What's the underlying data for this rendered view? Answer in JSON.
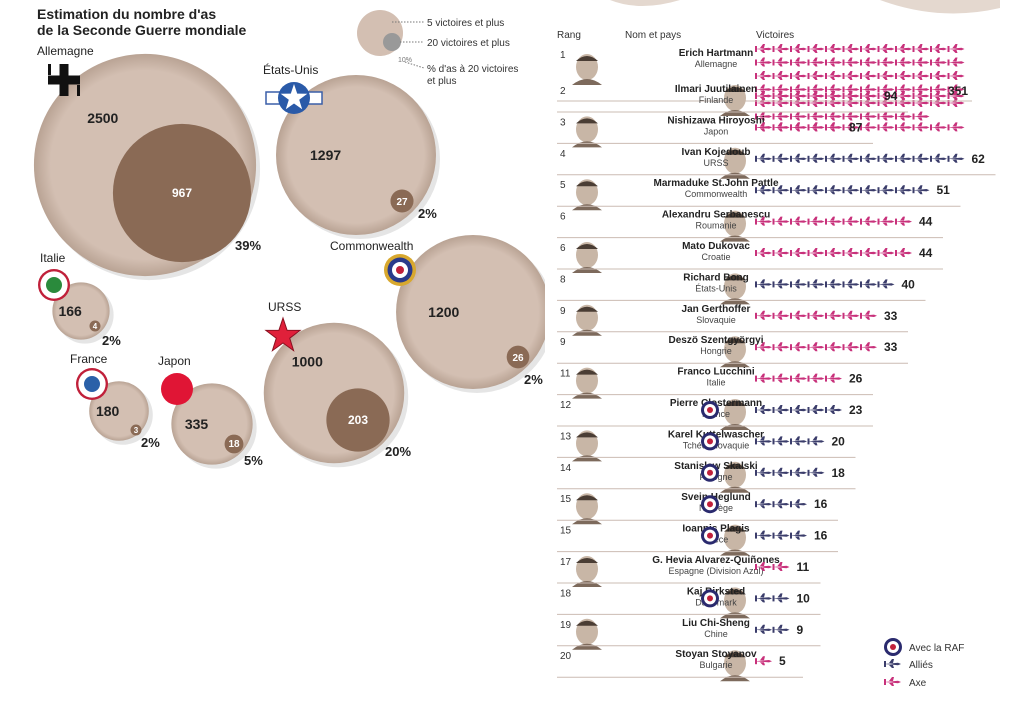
{
  "title_lines": [
    "Estimation du nombre d'as",
    "de la Seconde Guerre mondiale"
  ],
  "bubble_legend": {
    "items": [
      "5 victoires et plus",
      "20 victoires et plus",
      "% d'as à 20 victoires",
      "et plus"
    ],
    "sample_pct": "10%"
  },
  "table_headers": {
    "rank": "Rang",
    "name": "Nom et pays",
    "victories": "Victoires"
  },
  "legend": {
    "raf": "Avec la RAF",
    "allies": "Alliés",
    "axis": "Axe"
  },
  "colors": {
    "outer": "#d3bfb2",
    "inner": "#8a6a55",
    "axis": "#c8317b",
    "allies": "#3b3d6b",
    "raf": "#2a2a6e",
    "row_line": "#cbbcb3"
  },
  "chart_data": [
    {
      "type": "bubble",
      "series": [
        {
          "country": "Allemagne",
          "aces_5_plus": 2500,
          "aces_20_plus": 967,
          "pct_20_plus": "39%"
        },
        {
          "country": "États-Unis",
          "aces_5_plus": 1297,
          "aces_20_plus": 27,
          "pct_20_plus": "2%"
        },
        {
          "country": "Italie",
          "aces_5_plus": 166,
          "aces_20_plus": 4,
          "pct_20_plus": "2%"
        },
        {
          "country": "Commonwealth",
          "aces_5_plus": 1200,
          "aces_20_plus": 26,
          "pct_20_plus": "2%"
        },
        {
          "country": "France",
          "aces_5_plus": 180,
          "aces_20_plus": 3,
          "pct_20_plus": "2%"
        },
        {
          "country": "Japon",
          "aces_5_plus": 335,
          "aces_20_plus": 18,
          "pct_20_plus": "5%"
        },
        {
          "country": "URSS",
          "aces_5_plus": 1000,
          "aces_20_plus": 203,
          "pct_20_plus": "20%"
        }
      ]
    },
    {
      "type": "bar",
      "pilots": [
        {
          "rank": "1",
          "name": "Erich Hartmann",
          "country": "Allemagne",
          "victories": 351,
          "side": "axis",
          "raf": false
        },
        {
          "rank": "2",
          "name": "Ilmari Juutilainen",
          "country": "Finlande",
          "victories": 94,
          "side": "axis",
          "raf": false
        },
        {
          "rank": "3",
          "name": "Nishizawa Hiroyoshi",
          "country": "Japon",
          "victories": 87,
          "side": "axis",
          "raf": false
        },
        {
          "rank": "4",
          "name": "Ivan Kojedoub",
          "country": "URSS",
          "victories": 62,
          "side": "allies",
          "raf": false
        },
        {
          "rank": "5",
          "name": "Marmaduke St.John Pattle",
          "country": "Commonwealth",
          "victories": 51,
          "side": "allies",
          "raf": false
        },
        {
          "rank": "6",
          "name": "Alexandru Serbanescu",
          "country": "Roumanie",
          "victories": 44,
          "side": "axis",
          "raf": false
        },
        {
          "rank": "6",
          "name": "Mato Dukovac",
          "country": "Croatie",
          "victories": 44,
          "side": "axis",
          "raf": false
        },
        {
          "rank": "8",
          "name": "Richard Bong",
          "country": "États-Unis",
          "victories": 40,
          "side": "allies",
          "raf": false
        },
        {
          "rank": "9",
          "name": "Jan Gerthoffer",
          "country": "Slovaquie",
          "victories": 33,
          "side": "axis",
          "raf": false
        },
        {
          "rank": "9",
          "name": "Deszö Szentgyörgyi",
          "country": "Hongrie",
          "victories": 33,
          "side": "axis",
          "raf": false
        },
        {
          "rank": "11",
          "name": "Franco Lucchini",
          "country": "Italie",
          "victories": 26,
          "side": "axis",
          "raf": false
        },
        {
          "rank": "12",
          "name": "Pierre Clostermann",
          "country": "France",
          "victories": 23,
          "side": "allies",
          "raf": true
        },
        {
          "rank": "13",
          "name": "Karel Kuttelwascher",
          "country": "Tchécoslovaquie",
          "victories": 20,
          "side": "allies",
          "raf": true
        },
        {
          "rank": "14",
          "name": "Stanislaw Skalski",
          "country": "Pologne",
          "victories": 18,
          "side": "allies",
          "raf": true
        },
        {
          "rank": "15",
          "name": "Svein Heglund",
          "country": "Norvège",
          "victories": 16,
          "side": "allies",
          "raf": true
        },
        {
          "rank": "15",
          "name": "Ioannis Plagis",
          "country": "Grèce",
          "victories": 16,
          "side": "allies",
          "raf": true
        },
        {
          "rank": "17",
          "name": "G. Hevia Alvarez-Quiñones",
          "country": "Espagne (Division Azul)",
          "victories": 11,
          "side": "axis",
          "raf": false
        },
        {
          "rank": "18",
          "name": "Kaj Birksted",
          "country": "Danemark",
          "victories": 10,
          "side": "allies",
          "raf": true
        },
        {
          "rank": "19",
          "name": "Liu Chi-Sheng",
          "country": "Chine",
          "victories": 9,
          "side": "allies",
          "raf": false
        },
        {
          "rank": "20",
          "name": "Stoyan Stoyanov",
          "country": "Bulgarie",
          "victories": 5,
          "side": "axis",
          "raf": false
        }
      ]
    }
  ]
}
